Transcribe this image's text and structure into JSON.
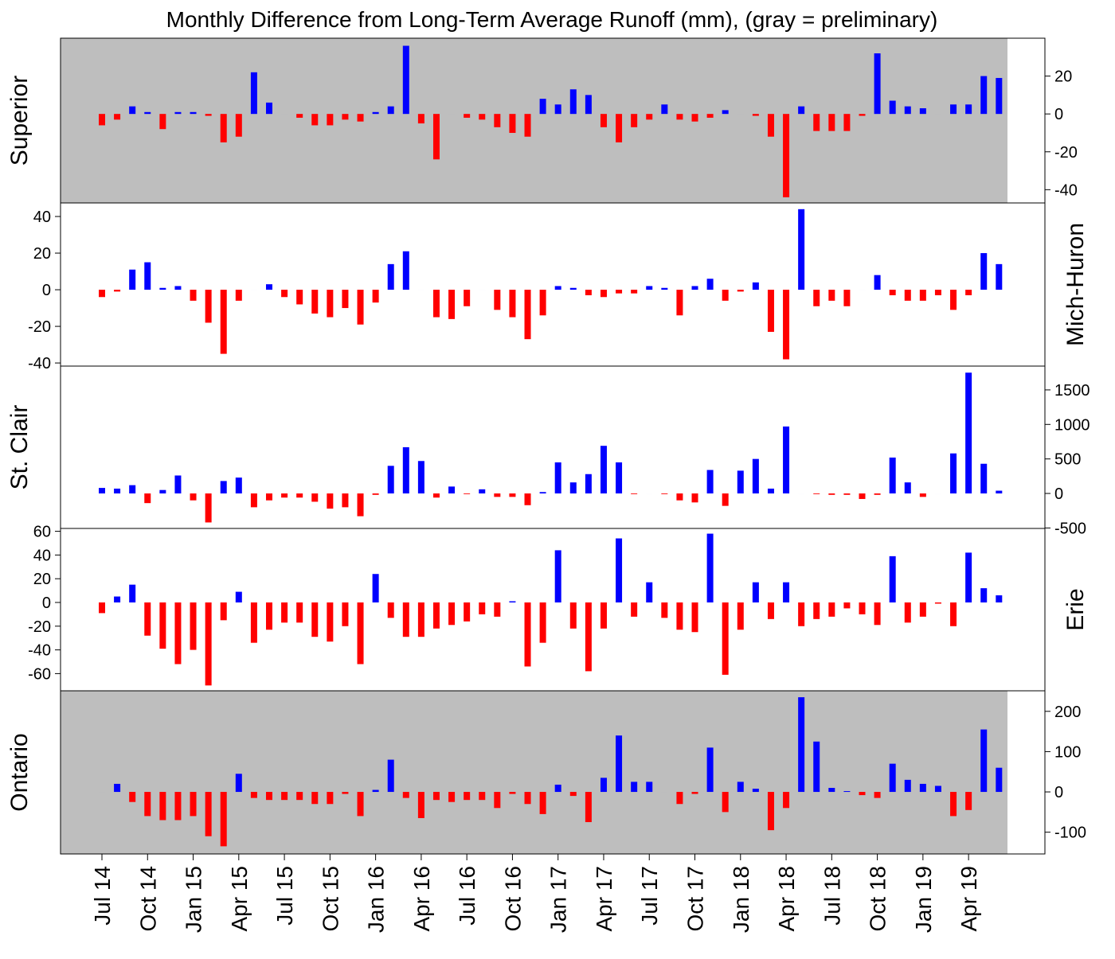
{
  "chart_data": {
    "type": "bar",
    "title": "Monthly Difference from Long-Term Average Runoff (mm), (gray = preliminary)",
    "x_tick_labels": [
      "Jul 14",
      "Oct 14",
      "Jan 15",
      "Apr 15",
      "Jul 15",
      "Oct 15",
      "Jan 16",
      "Apr 16",
      "Jul 16",
      "Oct 16",
      "Jan 17",
      "Apr 17",
      "Jul 17",
      "Oct 17",
      "Jan 18",
      "Apr 18",
      "Jul 18",
      "Oct 18",
      "Jan 19",
      "Apr 19"
    ],
    "x_range": "Jul 2014 - Jun 2019 (monthly)",
    "colors": {
      "positive": "#0000ff",
      "negative": "#ff0000",
      "preliminary_background": "#bebebe"
    },
    "panels": [
      {
        "name": "Superior",
        "preliminary": true,
        "ylim": [
          -47,
          40
        ],
        "ticks": [
          -40,
          -20,
          0,
          20
        ],
        "values": [
          -6,
          -3,
          4,
          1,
          -8,
          1,
          1,
          -1,
          -15,
          -12,
          22,
          6,
          0,
          -2,
          -6,
          -6,
          -3,
          -4,
          1,
          4,
          36,
          -5,
          -24,
          0,
          -2,
          -3,
          -7,
          -10,
          -12,
          8,
          5,
          13,
          10,
          -7,
          -15,
          -7,
          -3,
          5,
          -3,
          -4,
          -2,
          2,
          0,
          -1,
          -12,
          -44,
          4,
          -9,
          -9,
          -9,
          -1,
          32,
          7,
          4,
          3,
          0,
          5,
          5,
          20,
          19
        ]
      },
      {
        "name": "Mich-Huron",
        "preliminary": false,
        "ylim": [
          -41.7,
          47.4
        ],
        "ticks": [
          -40,
          -20,
          0,
          20,
          40
        ],
        "values": [
          -4,
          -1,
          11,
          15,
          1,
          2,
          -6,
          -18,
          -35,
          -6,
          0,
          3,
          -4,
          -8,
          -13,
          -15,
          -10,
          -19,
          -7,
          14,
          21,
          0,
          -15,
          -16,
          -9,
          0,
          -11,
          -15,
          -27,
          -14,
          2,
          1,
          -3,
          -4,
          -2,
          -2,
          2,
          1,
          -14,
          2,
          6,
          -6,
          -1,
          4,
          -23,
          -38,
          44,
          -9,
          -6,
          -9,
          0,
          8,
          -3,
          -6,
          -6,
          -3,
          -11,
          -3,
          20,
          14
        ]
      },
      {
        "name": "St. Clair",
        "preliminary": false,
        "ylim": [
          -507,
          1845
        ],
        "ticks": [
          -500,
          0,
          500,
          1000,
          1500
        ],
        "values": [
          80,
          70,
          120,
          -140,
          50,
          260,
          -100,
          -420,
          180,
          230,
          -200,
          -100,
          -60,
          -60,
          -120,
          -220,
          -200,
          -330,
          -20,
          400,
          670,
          470,
          -60,
          100,
          -10,
          60,
          -50,
          -50,
          -170,
          20,
          450,
          160,
          280,
          690,
          450,
          -10,
          0,
          -10,
          -100,
          -130,
          340,
          -180,
          330,
          500,
          70,
          970,
          0,
          -10,
          -20,
          -20,
          -80,
          -20,
          520,
          160,
          -50,
          0,
          580,
          1750,
          430,
          40
        ]
      },
      {
        "name": "Erie",
        "preliminary": false,
        "ylim": [
          -74.5,
          62.4
        ],
        "ticks": [
          -60,
          -40,
          -20,
          0,
          20,
          40,
          60
        ],
        "values": [
          -9,
          5,
          15,
          -28,
          -39,
          -52,
          -40,
          -70,
          -15,
          9,
          -34,
          -23,
          -17,
          -17,
          -29,
          -33,
          -20,
          -52,
          24,
          -13,
          -29,
          -29,
          -22,
          -19,
          -16,
          -10,
          -12,
          1,
          -54,
          -34,
          44,
          -22,
          -58,
          -22,
          54,
          -12,
          17,
          -13,
          -23,
          -25,
          58,
          -61,
          -23,
          17,
          -14,
          17,
          -20,
          -14,
          -12,
          -5,
          -10,
          -19,
          39,
          -17,
          -12,
          -1,
          -20,
          42,
          12,
          6
        ]
      },
      {
        "name": "Ontario",
        "preliminary": true,
        "ylim": [
          -154,
          251
        ],
        "ticks": [
          -100,
          0,
          100,
          200
        ],
        "values": [
          0,
          20,
          -25,
          -60,
          -70,
          -70,
          -60,
          -110,
          -135,
          45,
          -15,
          -20,
          -20,
          -20,
          -30,
          -30,
          -5,
          -60,
          5,
          80,
          -15,
          -65,
          -20,
          -25,
          -20,
          -20,
          -40,
          -5,
          -30,
          -55,
          18,
          -10,
          -75,
          35,
          140,
          25,
          25,
          0,
          -30,
          -5,
          110,
          -50,
          25,
          8,
          -95,
          -40,
          235,
          125,
          10,
          2,
          -8,
          -15,
          70,
          30,
          20,
          15,
          -60,
          -45,
          155,
          60
        ]
      }
    ]
  }
}
